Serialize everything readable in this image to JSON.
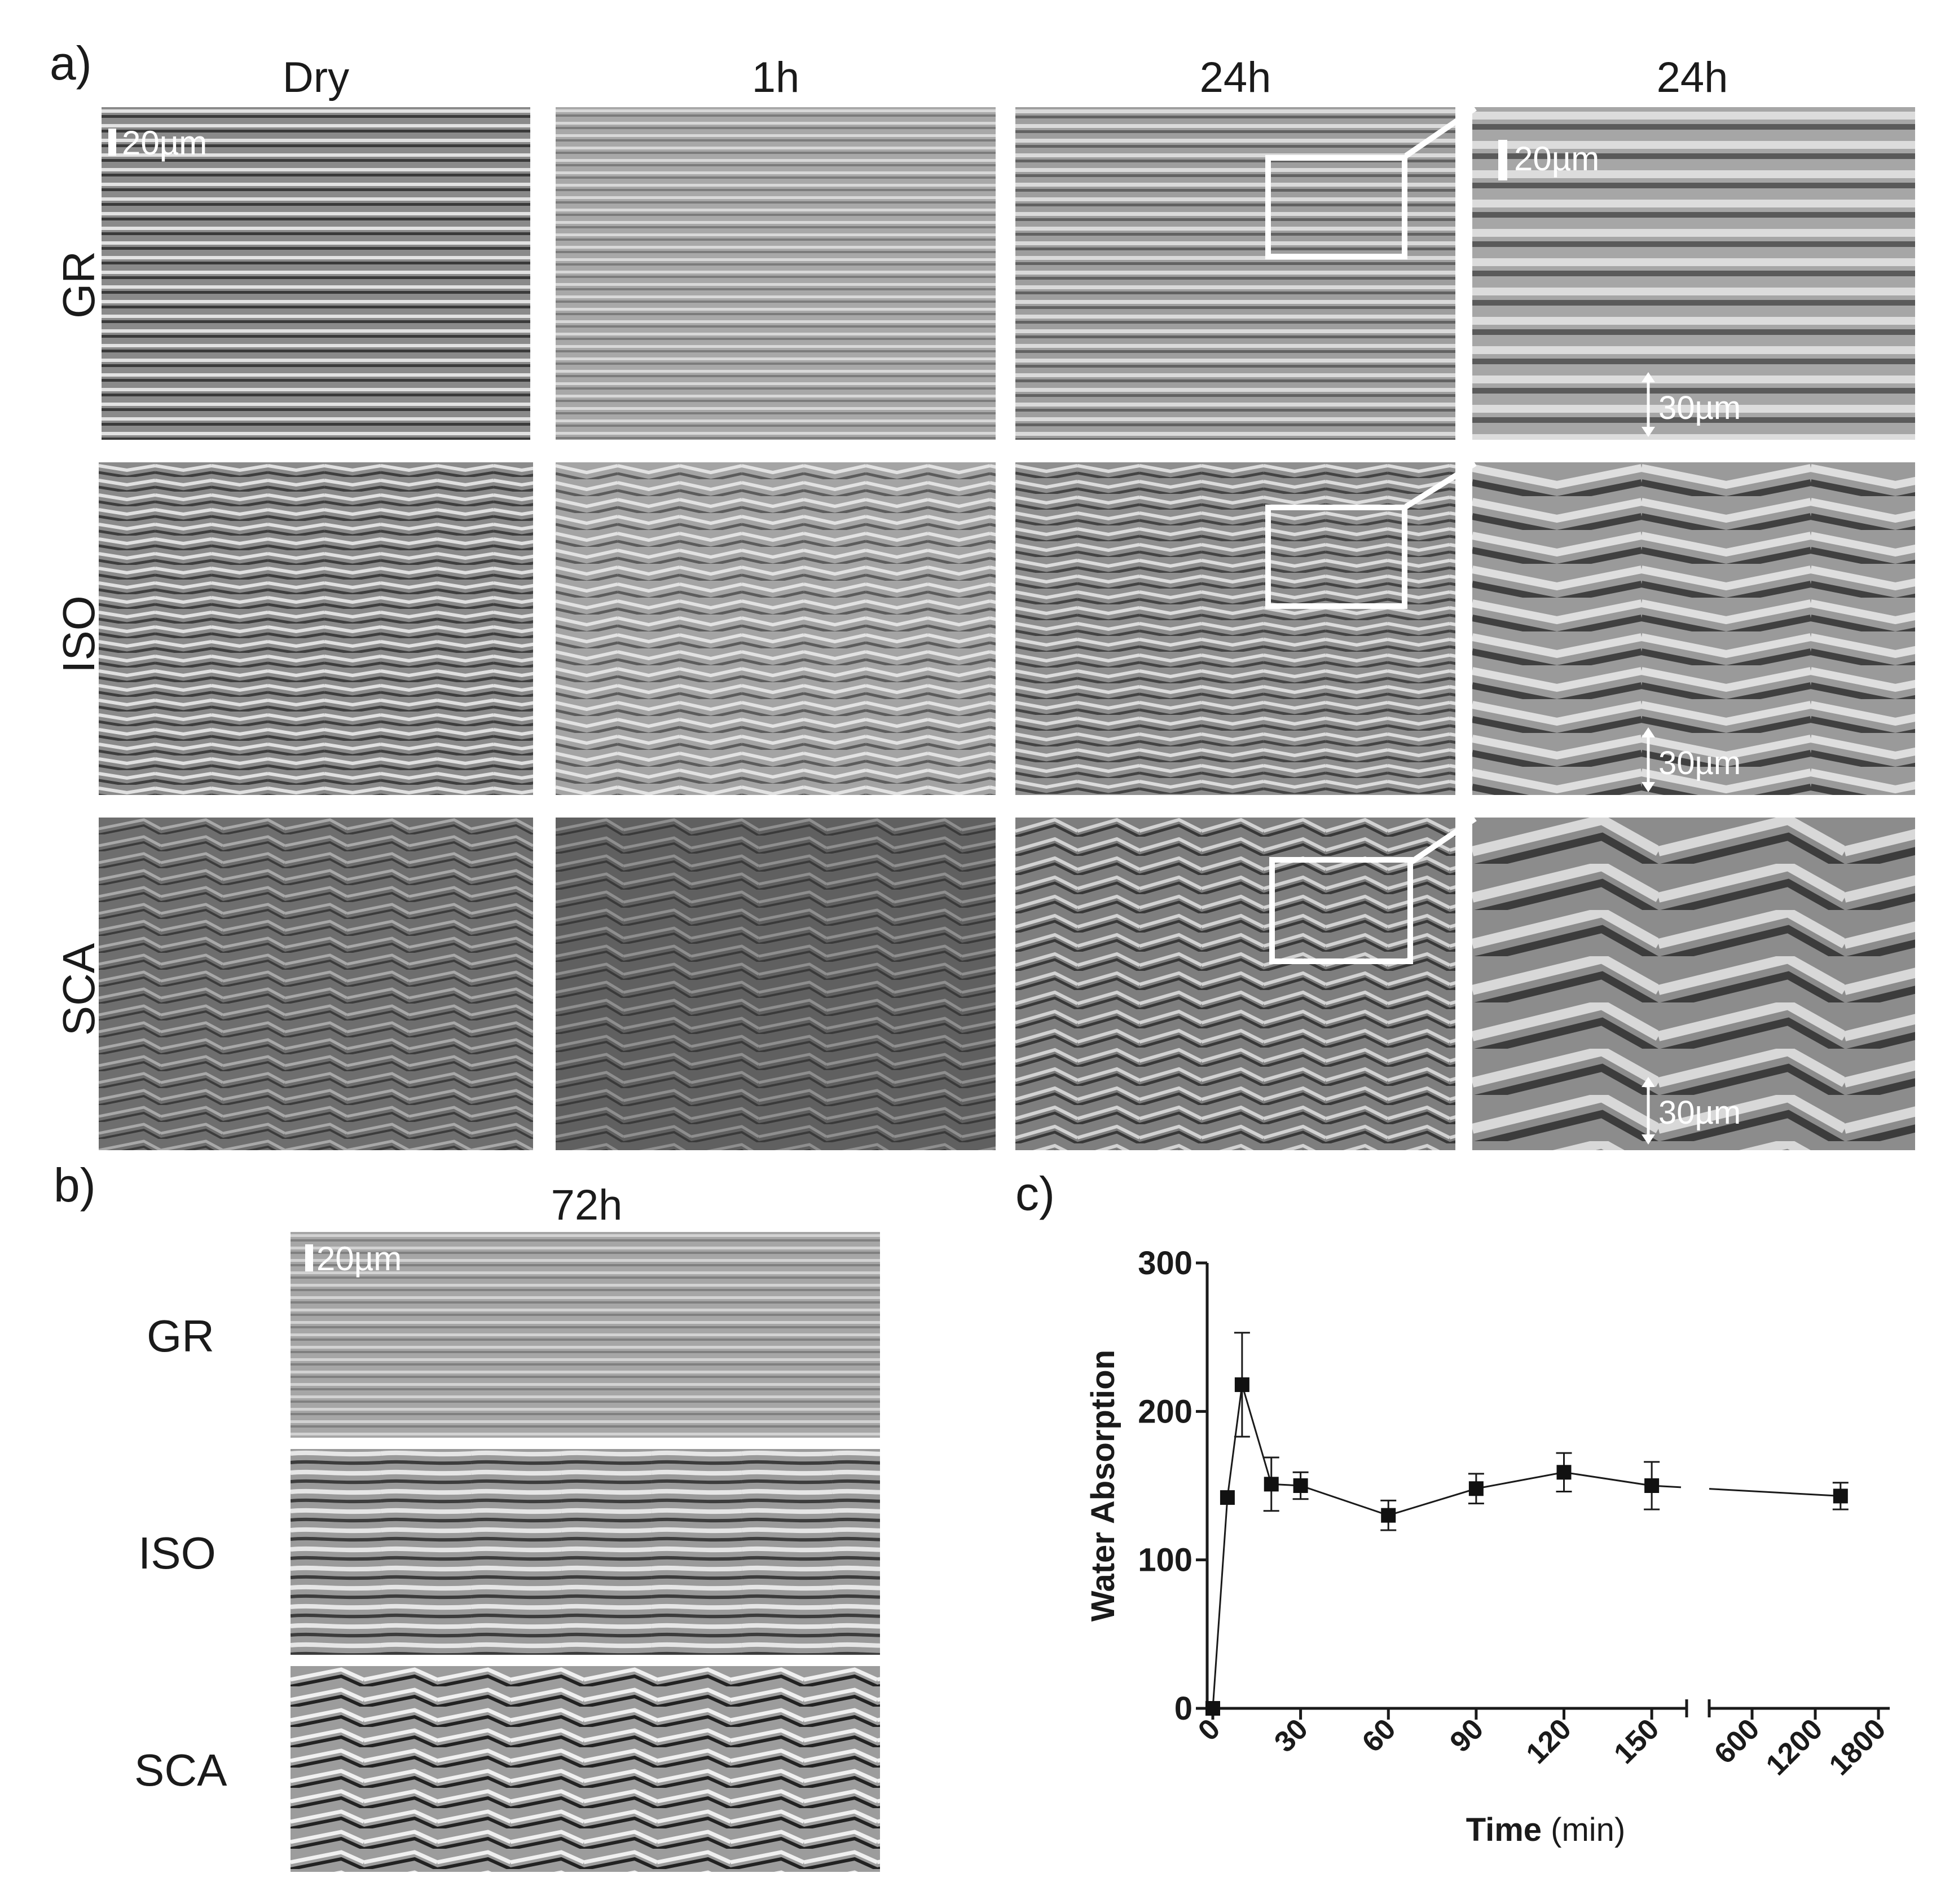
{
  "panel_a": {
    "letter": "a)",
    "columns": [
      "Dry",
      "1h",
      "24h",
      "24h"
    ],
    "rows": [
      "GR",
      "ISO",
      "SCA"
    ],
    "scale_bar_label": "20µm",
    "dimension_label": "30µm"
  },
  "panel_b": {
    "letter": "b)",
    "title": "72h",
    "rows": [
      "GR",
      "ISO",
      "SCA"
    ],
    "scale_bar_label": "20µm"
  },
  "panel_c": {
    "letter": "c)"
  },
  "chart_data": {
    "type": "scatter",
    "ylabel": "Water Absorption",
    "xlabel_bold": "Time",
    "xlabel_unit": "(min)",
    "ylim": [
      0,
      300
    ],
    "y_ticks": [
      "0",
      "100",
      "200",
      "300"
    ],
    "x_ticks_segment1": [
      "0",
      "30",
      "60",
      "90",
      "120",
      "150"
    ],
    "x_ticks_segment2": [
      "600",
      "1200",
      "1800"
    ],
    "xlim_segment1": [
      0,
      160
    ],
    "xlim_segment2": [
      300,
      1800
    ],
    "axis_break": true,
    "grid": false,
    "series": [
      {
        "marker": "square",
        "line": true,
        "points": [
          {
            "x": 0,
            "y": 0,
            "err": 0
          },
          {
            "x": 5,
            "y": 142,
            "err": 0
          },
          {
            "x": 10,
            "y": 218,
            "err": 35
          },
          {
            "x": 20,
            "y": 151,
            "err": 18
          },
          {
            "x": 30,
            "y": 150,
            "err": 9
          },
          {
            "x": 60,
            "y": 130,
            "err": 10
          },
          {
            "x": 90,
            "y": 148,
            "err": 10
          },
          {
            "x": 120,
            "y": 159,
            "err": 13
          },
          {
            "x": 150,
            "y": 150,
            "err": 16
          },
          {
            "x": 1440,
            "y": 143,
            "err": 9
          }
        ]
      }
    ]
  }
}
